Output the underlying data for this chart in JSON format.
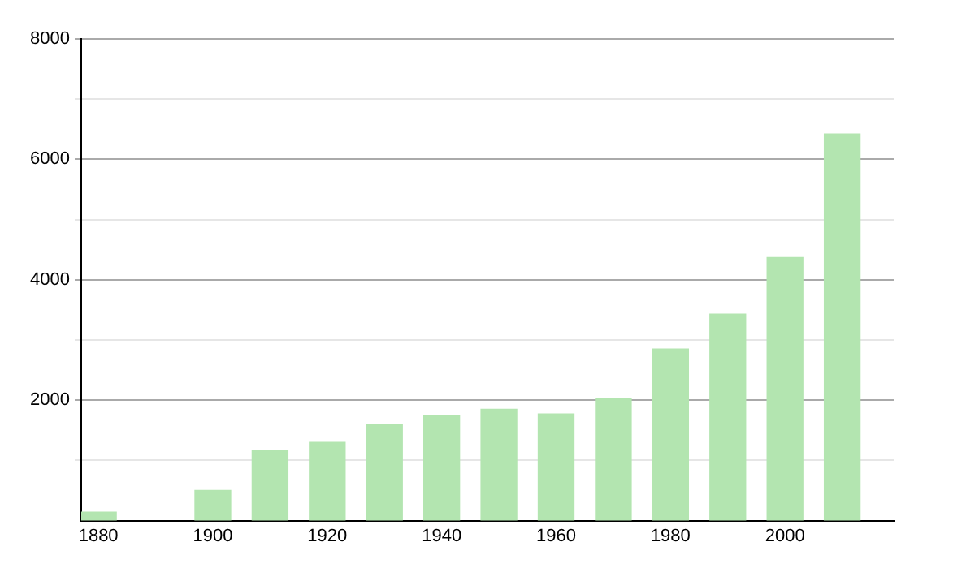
{
  "chart_data": {
    "type": "bar",
    "x": [
      1880,
      1900,
      1910,
      1920,
      1930,
      1940,
      1950,
      1960,
      1970,
      1980,
      1990,
      2000,
      2010
    ],
    "values": [
      140,
      500,
      1160,
      1300,
      1600,
      1740,
      1850,
      1770,
      2020,
      2850,
      3430,
      4370,
      6420
    ],
    "color": "#b3e5b0",
    "xlim": [
      1877,
      2019
    ],
    "xticks": [
      1880,
      1900,
      1920,
      1940,
      1960,
      1980,
      2000
    ],
    "ylim": [
      0,
      8000
    ],
    "yticks": [
      {
        "value": 1000,
        "label": null
      },
      2000,
      {
        "value": 3000,
        "label": null
      },
      4000,
      {
        "value": 5000,
        "label": null
      },
      6000,
      {
        "value": 7000,
        "label": null
      },
      8000
    ],
    "grid": "y",
    "legend": false
  }
}
